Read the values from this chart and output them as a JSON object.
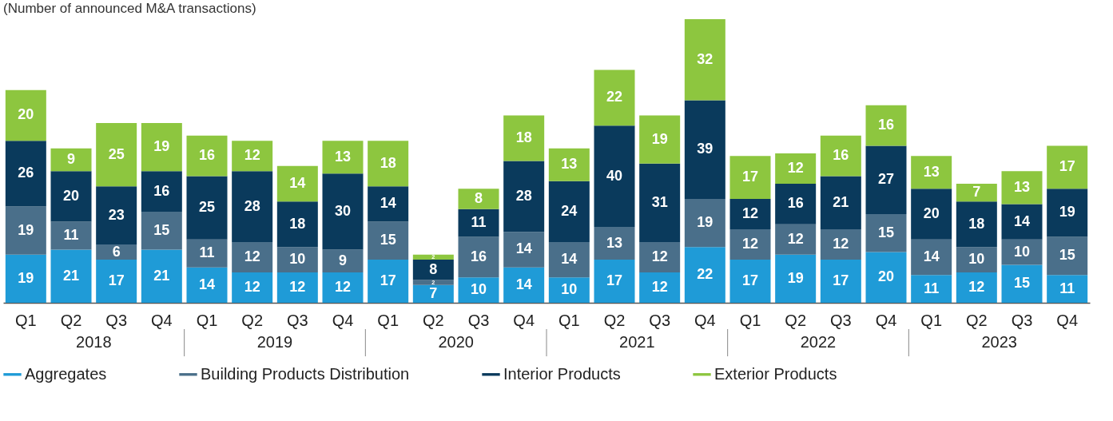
{
  "chart_data": {
    "type": "bar",
    "stacked": true,
    "data_labels": true,
    "legend": "bottom",
    "title": "(Number of announced M&A transactions)",
    "categories": [
      "Q1",
      "Q2",
      "Q3",
      "Q4",
      "Q1",
      "Q2",
      "Q3",
      "Q4",
      "Q1",
      "Q2",
      "Q3",
      "Q4",
      "Q1",
      "Q2",
      "Q3",
      "Q4",
      "Q1",
      "Q2",
      "Q3",
      "Q4",
      "Q1",
      "Q2",
      "Q3",
      "Q4"
    ],
    "annotations": [
      "2018",
      "2019",
      "2020",
      "2021",
      "2022",
      "2023"
    ],
    "series": [
      {
        "name": "Aggregates",
        "color": "#1f9bd7",
        "values": [
          19,
          21,
          17,
          21,
          14,
          12,
          12,
          12,
          17,
          7,
          10,
          14,
          10,
          17,
          12,
          22,
          17,
          19,
          17,
          20,
          11,
          12,
          15,
          11
        ]
      },
      {
        "name": "Building Products Distribution",
        "color": "#4a6f8a",
        "values": [
          19,
          11,
          6,
          15,
          11,
          12,
          10,
          9,
          15,
          2,
          16,
          14,
          14,
          13,
          12,
          19,
          12,
          12,
          12,
          15,
          14,
          10,
          10,
          15
        ]
      },
      {
        "name": "Interior Products",
        "color": "#0a3a5c",
        "values": [
          26,
          20,
          23,
          16,
          25,
          28,
          18,
          30,
          14,
          8,
          11,
          28,
          24,
          40,
          31,
          39,
          12,
          16,
          21,
          27,
          20,
          18,
          14,
          19
        ]
      },
      {
        "name": "Exterior Products",
        "color": "#8dc63f",
        "values": [
          20,
          9,
          25,
          19,
          16,
          12,
          14,
          13,
          18,
          2,
          8,
          18,
          13,
          22,
          19,
          32,
          17,
          12,
          16,
          16,
          13,
          7,
          13,
          17
        ]
      }
    ]
  }
}
